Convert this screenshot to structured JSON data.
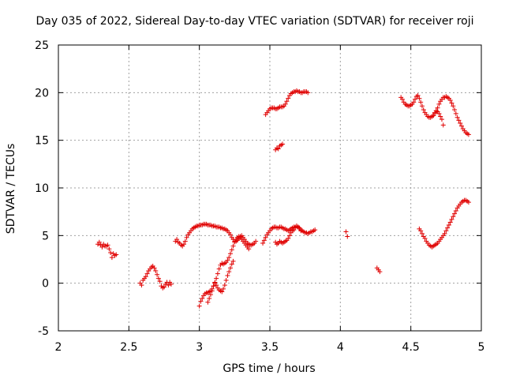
{
  "chart_data": {
    "type": "scatter",
    "title": "Day 035 of 2022, Sidereal Day-to-day VTEC variation (SDTVAR) for receiver roji",
    "xlabel": "GPS time / hours",
    "ylabel": "SDTVAR / TECUs",
    "xlim": [
      2,
      5
    ],
    "ylim": [
      -5,
      25
    ],
    "x_ticks": [
      2,
      2.5,
      3,
      3.5,
      4,
      4.5,
      5
    ],
    "x_tick_labels": [
      "2",
      "2.5",
      "3",
      "3.5",
      "4",
      "4.5",
      "5"
    ],
    "y_ticks": [
      -5,
      0,
      5,
      10,
      15,
      20,
      25
    ],
    "y_tick_labels": [
      "-5",
      "0",
      "5",
      "10",
      "15",
      "20",
      "25"
    ],
    "grid": true,
    "marker": "+",
    "marker_color": "#e00000",
    "series": [
      {
        "name": "s1",
        "x": [
          2.28,
          2.29,
          2.3,
          2.31,
          2.32,
          2.33,
          2.34,
          2.35,
          2.36,
          2.37,
          2.38,
          2.39,
          2.4,
          2.41
        ],
        "y": [
          4.1,
          4.3,
          4.0,
          3.8,
          4.1,
          3.9,
          3.9,
          4.0,
          3.6,
          3.2,
          2.7,
          3.1,
          2.9,
          3.0
        ]
      },
      {
        "name": "s2",
        "x": [
          2.58,
          2.59,
          2.6,
          2.61,
          2.62,
          2.63,
          2.64,
          2.65,
          2.66,
          2.67,
          2.68,
          2.69,
          2.7,
          2.71,
          2.72,
          2.73,
          2.74,
          2.75,
          2.76,
          2.77,
          2.78,
          2.79,
          2.8
        ],
        "y": [
          0.0,
          -0.2,
          0.3,
          0.5,
          0.7,
          1.0,
          1.3,
          1.5,
          1.7,
          1.8,
          1.6,
          1.3,
          0.9,
          0.5,
          0.2,
          -0.3,
          -0.5,
          -0.4,
          -0.1,
          0.1,
          -0.2,
          0.1,
          -0.1
        ]
      },
      {
        "name": "s3",
        "x": [
          2.83,
          2.84,
          2.85,
          2.86,
          2.87,
          2.88,
          2.89,
          2.9,
          2.91,
          2.92,
          2.93,
          2.94,
          2.95,
          2.96,
          2.97,
          2.98,
          2.99,
          3.0,
          3.01,
          3.02,
          3.03,
          3.04,
          3.05,
          3.06,
          3.07,
          3.08,
          3.09,
          3.1,
          3.11,
          3.12,
          3.13,
          3.14,
          3.15,
          3.16,
          3.17,
          3.18,
          3.19,
          3.2,
          3.21,
          3.22,
          3.23,
          3.24,
          3.25,
          3.26,
          3.27,
          3.28,
          3.29,
          3.3,
          3.31,
          3.32,
          3.33,
          3.34,
          3.35,
          3.36,
          3.37,
          3.38,
          3.39,
          3.4
        ],
        "y": [
          4.4,
          4.6,
          4.3,
          4.2,
          4.0,
          3.9,
          4.1,
          4.4,
          4.8,
          5.1,
          5.3,
          5.5,
          5.7,
          5.8,
          5.9,
          6.0,
          6.0,
          6.1,
          6.1,
          6.1,
          6.2,
          6.2,
          6.2,
          6.1,
          6.1,
          6.1,
          6.0,
          6.0,
          6.0,
          5.9,
          5.9,
          5.9,
          5.8,
          5.8,
          5.7,
          5.7,
          5.6,
          5.5,
          5.3,
          5.1,
          4.8,
          4.6,
          4.4,
          4.4,
          4.5,
          4.7,
          4.9,
          5.0,
          4.8,
          4.6,
          4.4,
          4.2,
          4.1,
          4.0,
          4.0,
          4.1,
          4.2,
          4.4
        ]
      },
      {
        "name": "s4",
        "x": [
          3.0,
          3.01,
          3.02,
          3.03,
          3.04,
          3.05,
          3.06,
          3.07,
          3.08,
          3.09,
          3.1,
          3.11,
          3.12,
          3.13,
          3.14,
          3.15,
          3.16,
          3.17,
          3.18,
          3.19,
          3.2,
          3.21,
          3.22,
          3.23,
          3.24,
          3.25,
          3.26,
          3.27,
          3.28,
          3.29,
          3.3,
          3.31,
          3.32,
          3.33,
          3.34,
          3.35
        ],
        "y": [
          -2.4,
          -1.9,
          -1.6,
          -1.3,
          -1.1,
          -1.0,
          -1.0,
          -0.9,
          -0.8,
          -0.6,
          -0.3,
          0.1,
          0.5,
          1.0,
          1.5,
          1.9,
          2.1,
          2.0,
          2.1,
          2.2,
          2.4,
          2.7,
          3.1,
          3.5,
          3.9,
          4.3,
          4.6,
          4.8,
          4.9,
          4.8,
          4.6,
          4.4,
          4.2,
          4.0,
          3.8,
          3.6
        ]
      },
      {
        "name": "s5",
        "x": [
          3.06,
          3.07,
          3.08,
          3.09,
          3.1,
          3.11,
          3.12,
          3.13,
          3.14,
          3.15,
          3.16,
          3.17,
          3.18,
          3.19,
          3.2,
          3.21,
          3.22,
          3.23,
          3.24
        ],
        "y": [
          -2.0,
          -1.6,
          -1.2,
          -0.8,
          -0.3,
          0.0,
          -0.2,
          -0.5,
          -0.7,
          -0.8,
          -0.9,
          -0.6,
          -0.2,
          0.3,
          0.8,
          1.2,
          1.6,
          2.0,
          2.3
        ]
      },
      {
        "name": "s6",
        "x": [
          3.45,
          3.46,
          3.47,
          3.48,
          3.49,
          3.5,
          3.51,
          3.52,
          3.53,
          3.54,
          3.55,
          3.56,
          3.57,
          3.58,
          3.59,
          3.6,
          3.61,
          3.62,
          3.63,
          3.64,
          3.65,
          3.66,
          3.67,
          3.68,
          3.69,
          3.7,
          3.71,
          3.72,
          3.73,
          3.74,
          3.75,
          3.76,
          3.77,
          3.78,
          3.79,
          3.8,
          3.81,
          3.82
        ],
        "y": [
          4.2,
          4.5,
          4.8,
          5.1,
          5.3,
          5.5,
          5.7,
          5.8,
          5.9,
          5.9,
          5.8,
          5.8,
          5.9,
          5.9,
          5.8,
          5.7,
          5.7,
          5.6,
          5.5,
          5.6,
          5.7,
          5.8,
          5.9,
          5.9,
          6.0,
          5.9,
          5.8,
          5.6,
          5.5,
          5.4,
          5.3,
          5.3,
          5.2,
          5.3,
          5.4,
          5.4,
          5.5,
          5.6
        ]
      },
      {
        "name": "s7",
        "x": [
          3.54,
          3.55,
          3.56,
          3.57,
          3.58,
          3.59,
          3.6,
          3.61,
          3.62,
          3.63,
          3.64,
          3.65,
          3.66,
          3.67,
          3.68,
          3.69,
          3.7,
          3.71,
          3.72
        ],
        "y": [
          4.3,
          4.1,
          4.2,
          4.4,
          4.3,
          4.2,
          4.3,
          4.4,
          4.5,
          4.7,
          5.0,
          5.3,
          5.5,
          5.6,
          5.8,
          6.0,
          5.9,
          5.7,
          5.5
        ]
      },
      {
        "name": "s8",
        "x": [
          3.47,
          3.48,
          3.49,
          3.5,
          3.51,
          3.52,
          3.53,
          3.54,
          3.55,
          3.56,
          3.57,
          3.58,
          3.59,
          3.6,
          3.61,
          3.62,
          3.63,
          3.64,
          3.65,
          3.66,
          3.67,
          3.68,
          3.69,
          3.7,
          3.71,
          3.72,
          3.73,
          3.74,
          3.75,
          3.76,
          3.77
        ],
        "y": [
          17.7,
          17.9,
          18.1,
          18.3,
          18.4,
          18.4,
          18.4,
          18.3,
          18.3,
          18.4,
          18.5,
          18.5,
          18.5,
          18.6,
          18.8,
          19.1,
          19.4,
          19.7,
          19.9,
          20.0,
          20.1,
          20.1,
          20.2,
          20.1,
          20.1,
          20.0,
          20.0,
          20.1,
          20.1,
          20.1,
          20.0
        ]
      },
      {
        "name": "s9",
        "x": [
          3.54,
          3.55,
          3.56,
          3.57,
          3.58,
          3.59
        ],
        "y": [
          14.0,
          14.2,
          14.1,
          14.4,
          14.5,
          14.6
        ]
      },
      {
        "name": "s10",
        "x": [
          4.04,
          4.05
        ],
        "y": [
          5.4,
          4.9
        ]
      },
      {
        "name": "s11",
        "x": [
          4.26,
          4.27,
          4.28
        ],
        "y": [
          1.6,
          1.4,
          1.2
        ]
      },
      {
        "name": "s12",
        "x": [
          4.43,
          4.44,
          4.45,
          4.46,
          4.47,
          4.48,
          4.49,
          4.5,
          4.51,
          4.52,
          4.53,
          4.54,
          4.55,
          4.56,
          4.57,
          4.58,
          4.59,
          4.6,
          4.61,
          4.62,
          4.63,
          4.64,
          4.65,
          4.66,
          4.67,
          4.68,
          4.69,
          4.7,
          4.71,
          4.72,
          4.73,
          4.74,
          4.75,
          4.76,
          4.77,
          4.78,
          4.79,
          4.8,
          4.81,
          4.82,
          4.83,
          4.84,
          4.85,
          4.86,
          4.87,
          4.88,
          4.89,
          4.9,
          4.91
        ],
        "y": [
          19.5,
          19.3,
          19.0,
          18.8,
          18.7,
          18.6,
          18.6,
          18.7,
          18.8,
          19.0,
          19.3,
          19.6,
          19.7,
          19.4,
          19.0,
          18.6,
          18.2,
          17.9,
          17.7,
          17.5,
          17.4,
          17.4,
          17.5,
          17.6,
          17.8,
          18.1,
          18.4,
          18.8,
          19.1,
          19.3,
          19.5,
          19.5,
          19.6,
          19.5,
          19.4,
          19.2,
          18.9,
          18.6,
          18.2,
          17.8,
          17.4,
          17.1,
          16.8,
          16.5,
          16.2,
          16.0,
          15.8,
          15.7,
          15.6
        ]
      },
      {
        "name": "s13",
        "x": [
          4.66,
          4.67,
          4.68,
          4.69,
          4.7,
          4.71,
          4.72,
          4.73
        ],
        "y": [
          17.6,
          17.9,
          18.1,
          18.0,
          17.8,
          17.5,
          17.2,
          16.6
        ]
      },
      {
        "name": "s14",
        "x": [
          4.56,
          4.57,
          4.58,
          4.59,
          4.6,
          4.61,
          4.62,
          4.63,
          4.64,
          4.65,
          4.66,
          4.67,
          4.68,
          4.69,
          4.7,
          4.71,
          4.72,
          4.73,
          4.74,
          4.75,
          4.76,
          4.77,
          4.78,
          4.79,
          4.8,
          4.81,
          4.82,
          4.83,
          4.84,
          4.85,
          4.86,
          4.87,
          4.88,
          4.89,
          4.9,
          4.91
        ],
        "y": [
          5.7,
          5.5,
          5.2,
          4.9,
          4.7,
          4.4,
          4.2,
          4.0,
          3.9,
          3.8,
          3.9,
          4.0,
          4.1,
          4.2,
          4.4,
          4.6,
          4.8,
          5.0,
          5.2,
          5.5,
          5.8,
          6.1,
          6.4,
          6.7,
          7.0,
          7.3,
          7.6,
          7.9,
          8.1,
          8.3,
          8.5,
          8.6,
          8.7,
          8.7,
          8.6,
          8.5
        ]
      }
    ]
  }
}
